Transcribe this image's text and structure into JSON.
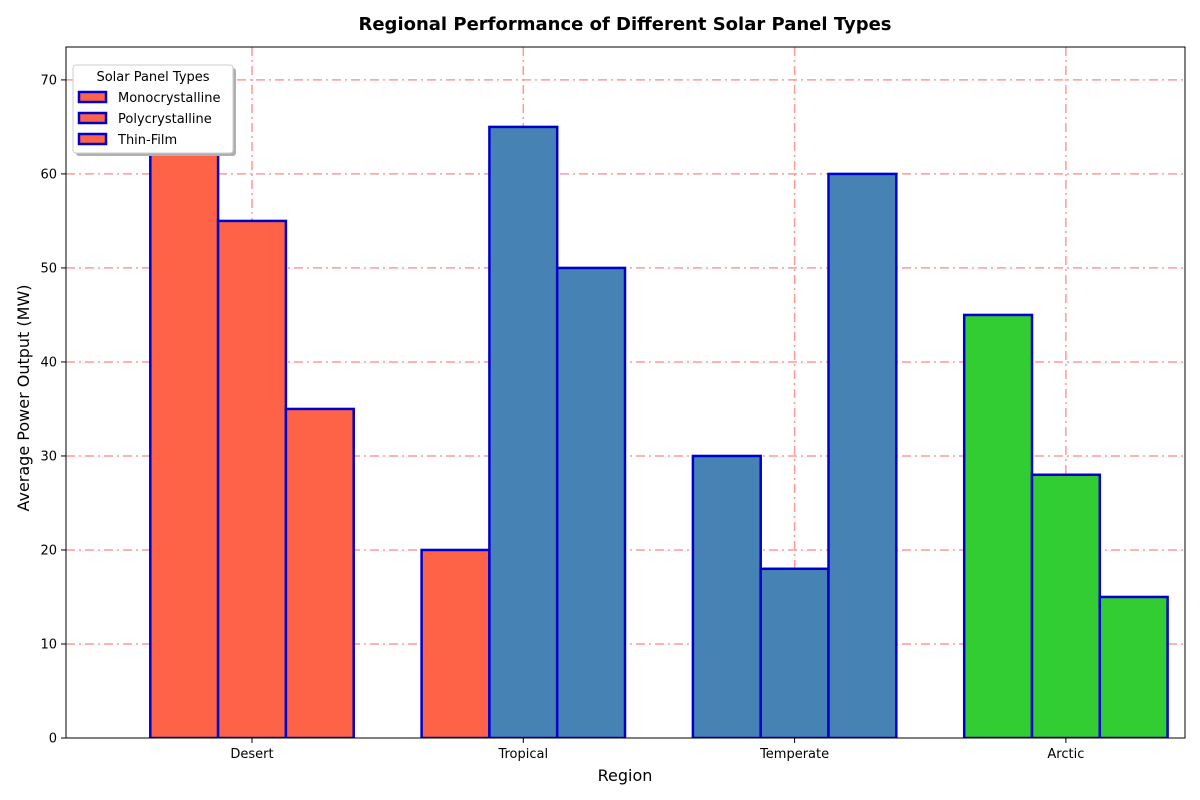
{
  "chart_data": {
    "type": "bar",
    "title": "Regional Performance of Different Solar Panel Types",
    "xlabel": "Region",
    "ylabel": "Average Power Output (MW)",
    "categories": [
      "Desert",
      "Tropical",
      "Temperate",
      "Arctic"
    ],
    "series": [
      {
        "name": "Monocrystalline",
        "values": [
          70,
          20,
          30,
          45
        ]
      },
      {
        "name": "Polycrystalline",
        "values": [
          55,
          65,
          18,
          28
        ]
      },
      {
        "name": "Thin-Film",
        "values": [
          35,
          50,
          60,
          15
        ]
      }
    ],
    "bar_colors_by_category": [
      "#ff6347",
      "#4682b4",
      "#4682b4",
      "#32cd32"
    ],
    "first_bar_color_by_category": [
      "#ff6347",
      "#ff6347",
      "#4682b4",
      "#32cd32"
    ],
    "bar_edge_color": "#0000cd",
    "grid_color": "#ff9999",
    "ylim": [
      0,
      73.5
    ],
    "yticks": [
      0,
      10,
      20,
      30,
      40,
      50,
      60,
      70
    ],
    "grid": true,
    "legend": {
      "title": "Solar Panel Types",
      "placement": "top-left",
      "entries": [
        "Monocrystalline",
        "Polycrystalline",
        "Thin-Film"
      ],
      "swatch_color": "#ff6347"
    }
  }
}
